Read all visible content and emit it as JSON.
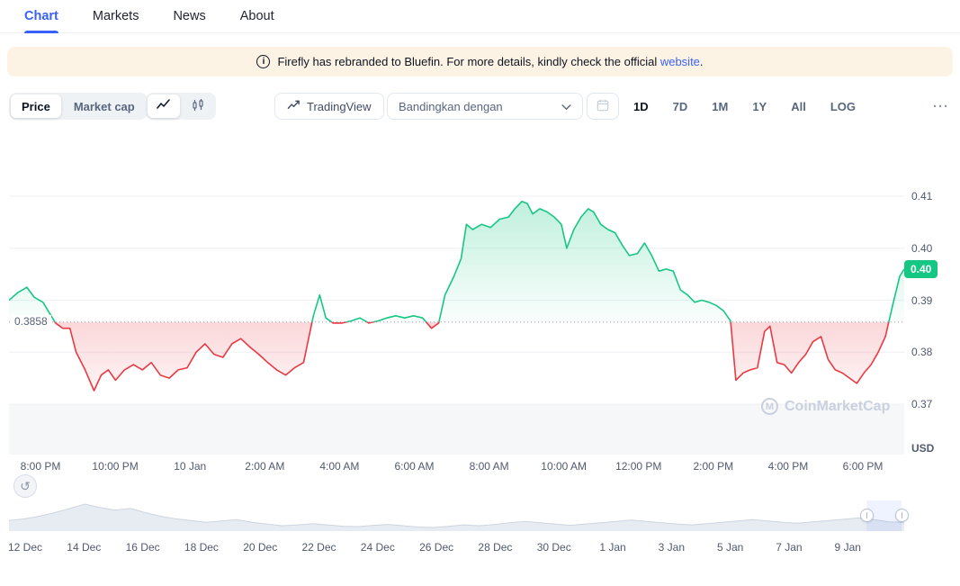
{
  "colors": {
    "accent": "#3861fb",
    "green": "#16c784",
    "red": "#ea3943"
  },
  "icons": {
    "info": "i",
    "reset": "↺",
    "logo_m": "M"
  },
  "nav": {
    "active_tab": "Chart",
    "tabs": [
      {
        "label": "Chart"
      },
      {
        "label": "Markets"
      },
      {
        "label": "News"
      },
      {
        "label": "About"
      }
    ]
  },
  "banner": {
    "text": "Firefly has rebranded to Bluefin. For more details, kindly check the official ",
    "link_text": "website",
    "suffix": "."
  },
  "toolbar": {
    "metric_toggle": {
      "options": [
        "Price",
        "Market cap"
      ],
      "selected": "Price"
    },
    "chart_type_toggle": {
      "options": [
        "line",
        "candlestick"
      ],
      "selected": "line"
    },
    "tradingview_label": "TradingView",
    "compare_label": "Bandingkan dengan",
    "ranges": {
      "options": [
        "1D",
        "7D",
        "1M",
        "1Y",
        "All"
      ],
      "selected": "1D",
      "log_label": "LOG",
      "more_label": "···"
    }
  },
  "watermark": "CoinMarketCap",
  "chart_data": [
    {
      "type": "line",
      "title": "Price chart (1D)",
      "unit": "USD",
      "baseline": {
        "value": 0.3858,
        "label": "0.3858"
      },
      "last_price_badge": "0.40",
      "y_axis": {
        "ticks": [
          0.41,
          0.4,
          0.39,
          0.38,
          0.37
        ],
        "labels": [
          "0.41",
          "0.40",
          "0.39",
          "0.38",
          "0.37"
        ],
        "range": [
          0.3603,
          0.4204
        ],
        "unit_label": "USD"
      },
      "x_axis": {
        "labels": [
          "8:00 PM",
          "10:00 PM",
          "10 Jan",
          "2:00 AM",
          "4:00 AM",
          "6:00 AM",
          "8:00 AM",
          "10:00 AM",
          "12:00 PM",
          "2:00 PM",
          "4:00 PM",
          "6:00 PM"
        ]
      },
      "series": [
        {
          "name": "Price",
          "x_unit": "percent_of_width",
          "points": [
            [
              0,
              0.39
            ],
            [
              1,
              0.3915
            ],
            [
              2,
              0.3925
            ],
            [
              2.8,
              0.3906
            ],
            [
              3.8,
              0.3896
            ],
            [
              4.5,
              0.3876
            ],
            [
              5.2,
              0.3856
            ],
            [
              6,
              0.3846
            ],
            [
              6.8,
              0.3846
            ],
            [
              7.5,
              0.38
            ],
            [
              8.5,
              0.3766
            ],
            [
              9.5,
              0.3726
            ],
            [
              10.3,
              0.3756
            ],
            [
              11.1,
              0.3766
            ],
            [
              11.9,
              0.3746
            ],
            [
              12.9,
              0.3766
            ],
            [
              13.9,
              0.3776
            ],
            [
              14.9,
              0.3766
            ],
            [
              15.9,
              0.378
            ],
            [
              16.9,
              0.3756
            ],
            [
              17.9,
              0.375
            ],
            [
              18.9,
              0.3766
            ],
            [
              19.9,
              0.377
            ],
            [
              20.9,
              0.38
            ],
            [
              21.9,
              0.3816
            ],
            [
              22.9,
              0.3796
            ],
            [
              23.9,
              0.379
            ],
            [
              24.9,
              0.3816
            ],
            [
              25.9,
              0.3826
            ],
            [
              26.9,
              0.381
            ],
            [
              27.9,
              0.3796
            ],
            [
              28.9,
              0.378
            ],
            [
              29.9,
              0.3766
            ],
            [
              30.9,
              0.3756
            ],
            [
              31.9,
              0.377
            ],
            [
              32.9,
              0.378
            ],
            [
              34,
              0.387
            ],
            [
              34.7,
              0.391
            ],
            [
              35.4,
              0.3866
            ],
            [
              36.2,
              0.3856
            ],
            [
              37.2,
              0.3856
            ],
            [
              38.2,
              0.386
            ],
            [
              39.2,
              0.3866
            ],
            [
              40.2,
              0.3856
            ],
            [
              41.2,
              0.386
            ],
            [
              42.2,
              0.3866
            ],
            [
              43.2,
              0.387
            ],
            [
              44.2,
              0.3866
            ],
            [
              45.2,
              0.387
            ],
            [
              46.2,
              0.3866
            ],
            [
              47.2,
              0.3846
            ],
            [
              48,
              0.3856
            ],
            [
              48.7,
              0.391
            ],
            [
              49.7,
              0.3946
            ],
            [
              50.5,
              0.398
            ],
            [
              51.1,
              0.4046
            ],
            [
              51.8,
              0.4036
            ],
            [
              52.8,
              0.4046
            ],
            [
              53.8,
              0.404
            ],
            [
              54.8,
              0.4056
            ],
            [
              55.8,
              0.406
            ],
            [
              56.5,
              0.4076
            ],
            [
              57.3,
              0.409
            ],
            [
              57.9,
              0.4086
            ],
            [
              58.5,
              0.4066
            ],
            [
              59.3,
              0.4076
            ],
            [
              60.1,
              0.407
            ],
            [
              60.9,
              0.406
            ],
            [
              61.7,
              0.4046
            ],
            [
              62.3,
              0.4
            ],
            [
              63.1,
              0.4036
            ],
            [
              63.9,
              0.406
            ],
            [
              64.7,
              0.4076
            ],
            [
              65.3,
              0.407
            ],
            [
              66.1,
              0.4046
            ],
            [
              66.9,
              0.4036
            ],
            [
              67.7,
              0.403
            ],
            [
              68.5,
              0.4006
            ],
            [
              69.3,
              0.3986
            ],
            [
              70.2,
              0.399
            ],
            [
              71,
              0.401
            ],
            [
              71.8,
              0.3986
            ],
            [
              72.6,
              0.3956
            ],
            [
              73.4,
              0.396
            ],
            [
              74.2,
              0.3956
            ],
            [
              75,
              0.392
            ],
            [
              75.8,
              0.391
            ],
            [
              76.6,
              0.3896
            ],
            [
              77.4,
              0.39
            ],
            [
              78.2,
              0.3896
            ],
            [
              79,
              0.389
            ],
            [
              79.8,
              0.388
            ],
            [
              80.6,
              0.386
            ],
            [
              81.2,
              0.3746
            ],
            [
              82,
              0.376
            ],
            [
              82.8,
              0.3766
            ],
            [
              83.6,
              0.377
            ],
            [
              84.4,
              0.384
            ],
            [
              85,
              0.385
            ],
            [
              85.8,
              0.378
            ],
            [
              86.6,
              0.3776
            ],
            [
              87.4,
              0.376
            ],
            [
              88.2,
              0.378
            ],
            [
              89,
              0.3796
            ],
            [
              89.8,
              0.382
            ],
            [
              90.7,
              0.383
            ],
            [
              91.5,
              0.3786
            ],
            [
              92.3,
              0.3766
            ],
            [
              93.1,
              0.376
            ],
            [
              93.9,
              0.375
            ],
            [
              94.7,
              0.374
            ],
            [
              95.5,
              0.376
            ],
            [
              96.3,
              0.3776
            ],
            [
              97.1,
              0.38
            ],
            [
              97.9,
              0.383
            ],
            [
              98.7,
              0.389
            ],
            [
              99.5,
              0.3946
            ],
            [
              100,
              0.396
            ]
          ]
        }
      ]
    },
    {
      "type": "area",
      "title": "Date range navigator",
      "x_labels": [
        "12 Dec",
        "14 Dec",
        "16 Dec",
        "18 Dec",
        "20 Dec",
        "22 Dec",
        "24 Dec",
        "26 Dec",
        "28 Dec",
        "30 Dec",
        "1 Jan",
        "3 Jan",
        "5 Jan",
        "7 Jan",
        "9 Jan"
      ],
      "values": [
        0.4,
        0.404,
        0.41,
        0.418,
        0.428,
        0.438,
        0.43,
        0.424,
        0.428,
        0.418,
        0.41,
        0.404,
        0.4,
        0.396,
        0.399,
        0.402,
        0.396,
        0.392,
        0.388,
        0.39,
        0.393,
        0.39,
        0.387,
        0.386,
        0.389,
        0.391,
        0.388,
        0.385,
        0.384,
        0.387,
        0.39,
        0.388,
        0.391,
        0.395,
        0.398,
        0.395,
        0.392,
        0.389,
        0.392,
        0.395,
        0.398,
        0.401,
        0.398,
        0.395,
        0.392,
        0.39,
        0.393,
        0.396,
        0.399,
        0.402,
        0.399,
        0.396,
        0.394,
        0.397,
        0.4,
        0.403,
        0.406,
        0.402,
        0.397,
        0.396
      ],
      "selection": {
        "from_pct": 95.8,
        "to_pct": 99.7
      }
    }
  ]
}
